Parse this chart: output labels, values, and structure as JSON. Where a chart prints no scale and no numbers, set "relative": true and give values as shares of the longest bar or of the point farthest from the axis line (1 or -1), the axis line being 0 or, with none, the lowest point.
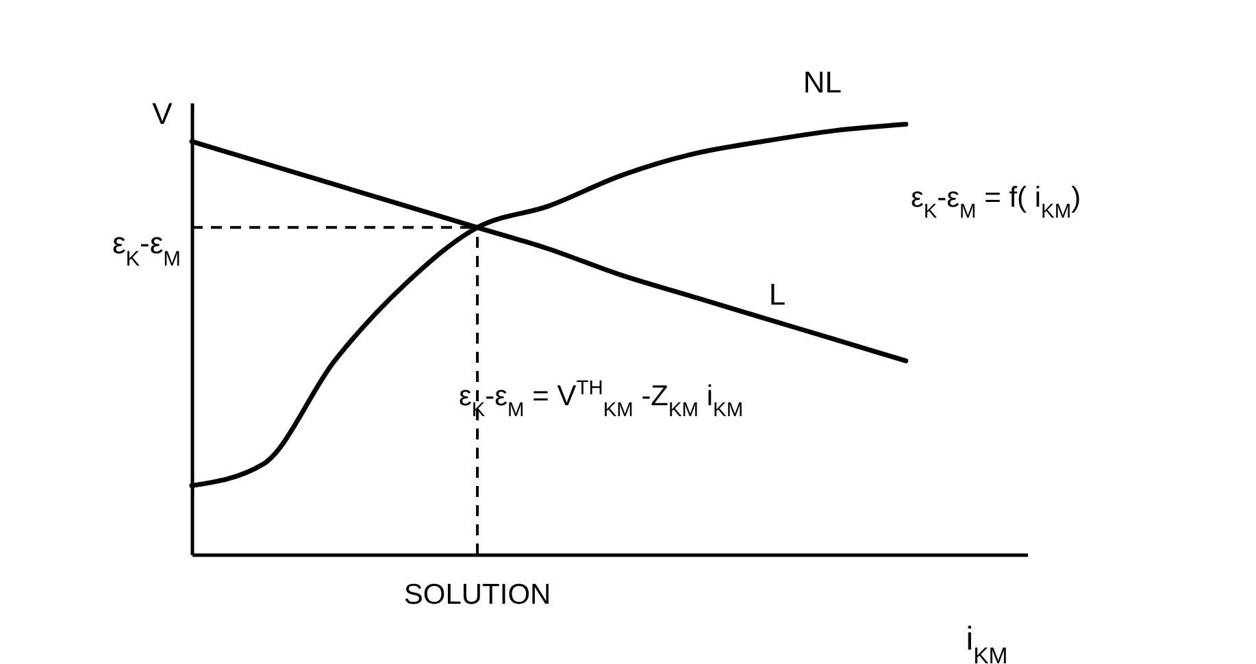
{
  "chart_data": {
    "type": "line",
    "relative": true,
    "xlabel": "i$_{KM}$",
    "ylabel": "V",
    "categories": [
      null,
      null,
      null,
      null,
      null,
      null,
      null,
      null,
      null,
      null,
      null
    ],
    "series": [
      {
        "name": "NL",
        "color": "#000000",
        "values": [
          0.16,
          0.21,
          0.45,
          0.63,
          0.76,
          0.81,
          0.88,
          0.93,
          0.96,
          0.985,
          1
        ]
      },
      {
        "name": "L",
        "color": "#000000",
        "values": [
          0.96,
          0.91,
          0.86,
          0.81,
          0.76,
          0.71,
          0.65,
          0.6,
          0.55,
          0.5,
          0.45
        ]
      }
    ],
    "ref_lines": [
      {
        "axis": "y",
        "value": 0.76,
        "label": "ε$_{K}$-ε$_{M}$",
        "line_style": "dashed"
      }
    ],
    "annotations": [
      "ε$_{K}$-ε$_{M}$ = f( i$_{KM}$)",
      "ε$_{K}$-ε$_{M}$ = V$^{TH}$$_{KM}$ -Z$_{KM}$  i$_{KM}$",
      "SOLUTION"
    ],
    "marker": "none",
    "line_style": "solid"
  }
}
